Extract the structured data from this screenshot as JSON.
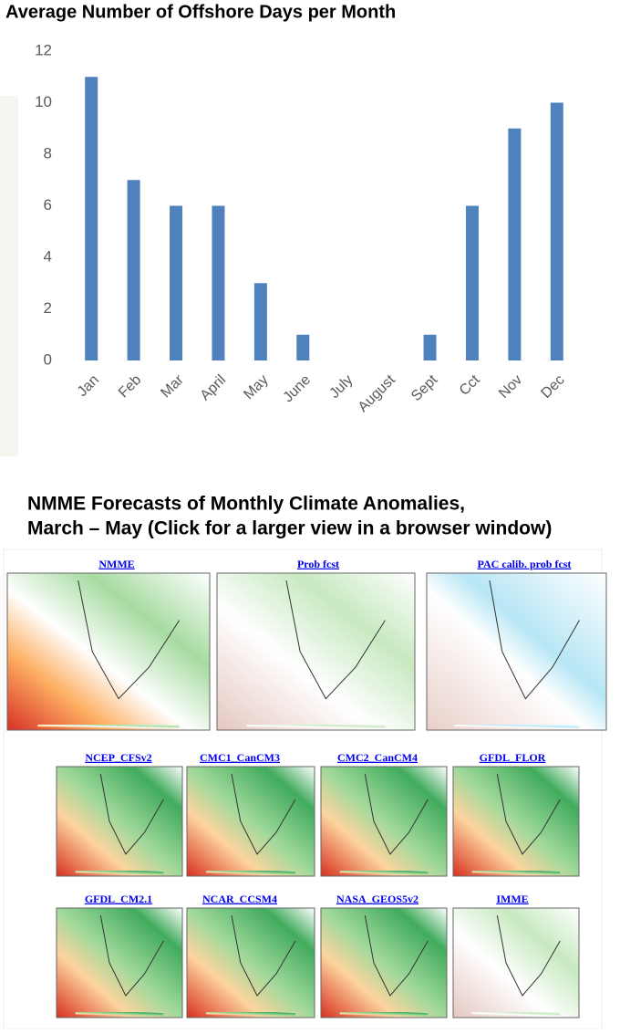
{
  "chart_data": {
    "type": "bar",
    "title": "Average Number of Offshore Days per Month",
    "categories": [
      "Jan",
      "Feb",
      "Mar",
      "April",
      "May",
      "June",
      "July",
      "August",
      "Sept",
      "Cct",
      "Nov",
      "Dec"
    ],
    "values": [
      11,
      7,
      6,
      6,
      3,
      1,
      0,
      0,
      1,
      6,
      9,
      10
    ],
    "color": "#4f81bd",
    "ylim": [
      0,
      12
    ],
    "yticks": [
      0,
      2,
      4,
      6,
      8,
      10,
      12
    ],
    "grid": false
  },
  "section": {
    "title_lines": [
      "NMME Forecasts of Monthly Climate Anomalies,",
      "March – May (Click for a larger view in a browser window)"
    ],
    "maps": [
      {
        "label": "NMME"
      },
      {
        "label": "Prob fcst"
      },
      {
        "label": "PAC calib. prob fcst"
      },
      {
        "label": "NCEP_CFSv2"
      },
      {
        "label": "CMC1_CanCM3"
      },
      {
        "label": "CMC2_CanCM4"
      },
      {
        "label": "GFDL_FLOR"
      },
      {
        "label": "GFDL_CM2.1"
      },
      {
        "label": "NCAR_CCSM4"
      },
      {
        "label": "NASA_GEOS5v2"
      },
      {
        "label": "IMME"
      }
    ]
  }
}
